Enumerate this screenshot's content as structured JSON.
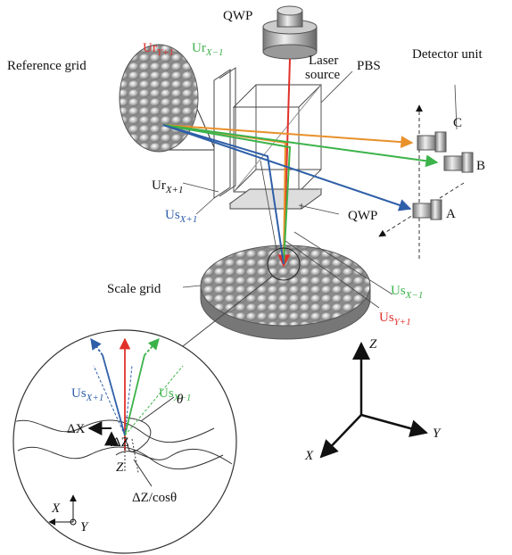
{
  "labels": {
    "qwp_top": "QWP",
    "laser_line1": "Laser",
    "laser_line2": "source",
    "detector_unit": "Detector unit",
    "reference_grid": "Reference grid",
    "pbs": "PBS",
    "det_c": "C",
    "det_b": "B",
    "det_a": "A",
    "qwp_bottom": "QWP",
    "ur_y_plus": {
      "main": "Ur",
      "sub": "Y+1"
    },
    "ur_x_minus": {
      "main": "Ur",
      "sub": "X−1"
    },
    "ur_x_plus": {
      "main": "Ur",
      "sub": "X+1"
    },
    "us_x_plus": {
      "main": "Us",
      "sub": "X+1"
    },
    "us_x_minus": {
      "main": "Us",
      "sub": "X−1"
    },
    "us_y_plus": {
      "main": "Us",
      "sub": "Y+1"
    },
    "scale_grid": "Scale grid",
    "axis_z": "Z",
    "axis_y": "Y",
    "axis_x": "X"
  },
  "inset": {
    "us_x_plus": {
      "main": "Us",
      "sub": "X+1"
    },
    "us_x_minus": {
      "main": "Us",
      "sub": "X−1"
    },
    "theta": "θ",
    "delta_x": "ΔX",
    "delta_z": "ΔZ",
    "z": "Z",
    "x": "X",
    "y": "Y",
    "dz_cos": "ΔZ/cosθ"
  }
}
